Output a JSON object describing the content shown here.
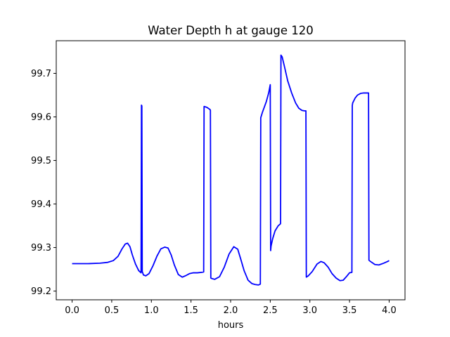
{
  "chart_data": {
    "type": "line",
    "title": "Water Depth h at gauge 120",
    "xlabel": "hours",
    "ylabel": "",
    "xlim": [
      -0.2,
      4.2
    ],
    "ylim": [
      99.18,
      99.775
    ],
    "xticks": [
      0.0,
      0.5,
      1.0,
      1.5,
      2.0,
      2.5,
      3.0,
      3.5,
      4.0
    ],
    "xtick_labels": [
      "0.0",
      "0.5",
      "1.0",
      "1.5",
      "2.0",
      "2.5",
      "3.0",
      "3.5",
      "4.0"
    ],
    "yticks": [
      99.2,
      99.3,
      99.4,
      99.5,
      99.6,
      99.7
    ],
    "ytick_labels": [
      "99.2",
      "99.3",
      "99.4",
      "99.5",
      "99.6",
      "99.7"
    ],
    "grid": false,
    "legend": "none",
    "series": [
      {
        "color": "#0000ff",
        "x": [
          0.0,
          0.2,
          0.35,
          0.45,
          0.52,
          0.58,
          0.63,
          0.67,
          0.7,
          0.73,
          0.76,
          0.8,
          0.84,
          0.87,
          0.875,
          0.88,
          0.885,
          0.9,
          0.93,
          0.97,
          1.02,
          1.07,
          1.12,
          1.17,
          1.21,
          1.25,
          1.29,
          1.34,
          1.39,
          1.44,
          1.48,
          1.53,
          1.58,
          1.63,
          1.66,
          1.665,
          1.7,
          1.74,
          1.745,
          1.75,
          1.76,
          1.8,
          1.86,
          1.92,
          1.98,
          2.04,
          2.09,
          2.13,
          2.17,
          2.22,
          2.27,
          2.31,
          2.35,
          2.375,
          2.38,
          2.4,
          2.45,
          2.48,
          2.5,
          2.505,
          2.51,
          2.53,
          2.56,
          2.6,
          2.62,
          2.63,
          2.635,
          2.65,
          2.68,
          2.72,
          2.77,
          2.82,
          2.86,
          2.9,
          2.93,
          2.945,
          2.95,
          2.955,
          2.98,
          3.03,
          3.09,
          3.14,
          3.18,
          3.23,
          3.28,
          3.33,
          3.38,
          3.42,
          3.46,
          3.5,
          3.53,
          3.535,
          3.54,
          3.57,
          3.6,
          3.64,
          3.68,
          3.72,
          3.74,
          3.745,
          3.75,
          3.78,
          3.82,
          3.87,
          3.93,
          3.98,
          4.0
        ],
        "y": [
          99.263,
          99.263,
          99.264,
          99.266,
          99.27,
          99.28,
          99.297,
          99.308,
          99.31,
          99.302,
          99.283,
          99.262,
          99.247,
          99.242,
          99.627,
          99.625,
          99.245,
          99.237,
          99.235,
          99.24,
          99.258,
          99.28,
          99.297,
          99.301,
          99.299,
          99.283,
          99.26,
          99.238,
          99.232,
          99.236,
          99.24,
          99.242,
          99.242,
          99.243,
          99.244,
          99.624,
          99.622,
          99.617,
          99.615,
          99.23,
          99.229,
          99.227,
          99.233,
          99.255,
          99.285,
          99.302,
          99.296,
          99.272,
          99.247,
          99.225,
          99.217,
          99.215,
          99.214,
          99.216,
          99.598,
          99.61,
          99.635,
          99.655,
          99.674,
          99.293,
          99.303,
          99.32,
          99.338,
          99.35,
          99.353,
          99.355,
          99.742,
          99.738,
          99.715,
          99.683,
          99.655,
          99.632,
          99.62,
          99.615,
          99.614,
          99.614,
          99.614,
          99.232,
          99.235,
          99.245,
          99.262,
          99.268,
          99.265,
          99.255,
          99.24,
          99.23,
          99.224,
          99.225,
          99.233,
          99.242,
          99.243,
          99.626,
          99.632,
          99.643,
          99.65,
          99.654,
          99.655,
          99.655,
          99.655,
          99.271,
          99.27,
          99.266,
          99.261,
          99.26,
          99.264,
          99.268,
          99.27
        ]
      }
    ]
  }
}
